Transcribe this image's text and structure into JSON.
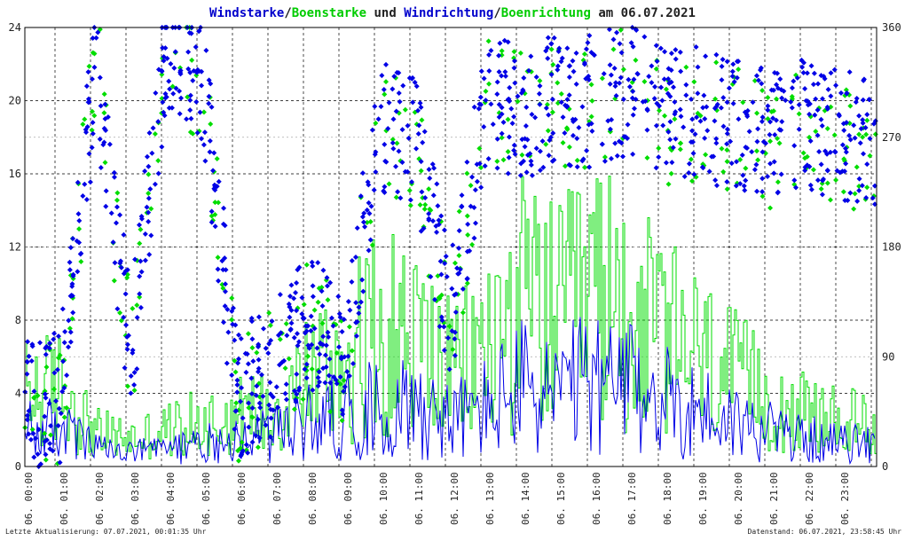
{
  "chart_data": {
    "type": "line",
    "title_parts": [
      {
        "text": "Windstarke",
        "color": "#0000cc"
      },
      {
        "text": "/",
        "color": "#222222"
      },
      {
        "text": "Boenstarke",
        "color": "#00cc00"
      },
      {
        "text": " und ",
        "color": "#222222"
      },
      {
        "text": "Windrichtung",
        "color": "#0000cc"
      },
      {
        "text": "/",
        "color": "#222222"
      },
      {
        "text": "Boenrichtung",
        "color": "#00cc00"
      },
      {
        "text": " am 06.07.2021",
        "color": "#222222"
      }
    ],
    "left_axis": {
      "min": 0,
      "max": 24,
      "ticks": [
        "0",
        "4",
        "8",
        "12",
        "16",
        "20",
        "24"
      ]
    },
    "right_axis": {
      "min": 0,
      "max": 360,
      "ticks": [
        "0",
        "90",
        "180",
        "270",
        "360"
      ]
    },
    "x_labels": [
      "06. 00:00",
      "06. 01:00",
      "06. 02:00",
      "06. 03:00",
      "06. 04:00",
      "06. 05:00",
      "06. 06:00",
      "06. 07:00",
      "06. 08:00",
      "06. 09:00",
      "06. 10:00",
      "06. 11:00",
      "06. 12:00",
      "06. 13:00",
      "06. 14:00",
      "06. 15:00",
      "06. 16:00",
      "06. 17:00",
      "06. 18:00",
      "06. 19:00",
      "06. 20:00",
      "06. 21:00",
      "06. 22:00",
      "06. 23:00"
    ],
    "grid": true,
    "colors": {
      "wind": "#0000e6",
      "gust": "#00dd00",
      "text": "#222222"
    },
    "series": [
      {
        "name": "Windstarke",
        "color": "#0000e6",
        "hourly_mean": [
          2.0,
          2.2,
          1.0,
          0.8,
          1.0,
          1.3,
          1.6,
          1.8,
          2.6,
          3.0,
          3.3,
          3.6,
          2.6,
          3.4,
          4.6,
          4.2,
          4.8,
          4.4,
          3.8,
          3.2,
          2.6,
          2.0,
          1.6,
          1.3
        ]
      },
      {
        "name": "Boenstarke",
        "color": "#00dd00",
        "hourly_mean": [
          4.0,
          4.2,
          1.8,
          1.5,
          2.0,
          2.4,
          2.8,
          3.2,
          5.0,
          5.8,
          7.5,
          7.0,
          5.0,
          6.5,
          9.0,
          8.0,
          9.5,
          8.5,
          7.0,
          6.0,
          4.8,
          3.6,
          2.8,
          2.4
        ]
      },
      {
        "name": "Windrichtung",
        "color": "#0000e6",
        "hourly_mean_deg": [
          50,
          55,
          330,
          90,
          350,
          320,
          60,
          80,
          120,
          90,
          280,
          270,
          120,
          300,
          290,
          300,
          300,
          310,
          290,
          290,
          280,
          270,
          280,
          270
        ]
      },
      {
        "name": "Boenrichtung",
        "color": "#00dd00",
        "hourly_mean_deg": [
          45,
          50,
          335,
          85,
          345,
          315,
          55,
          75,
          115,
          85,
          275,
          265,
          115,
          295,
          285,
          295,
          295,
          305,
          285,
          285,
          275,
          265,
          275,
          265
        ]
      }
    ],
    "footer_left": "Letzte Aktualisierung: 07.07.2021, 00:01:35 Uhr",
    "footer_right": "Datenstand: 06.07.2021, 23:58:45 Uhr"
  }
}
